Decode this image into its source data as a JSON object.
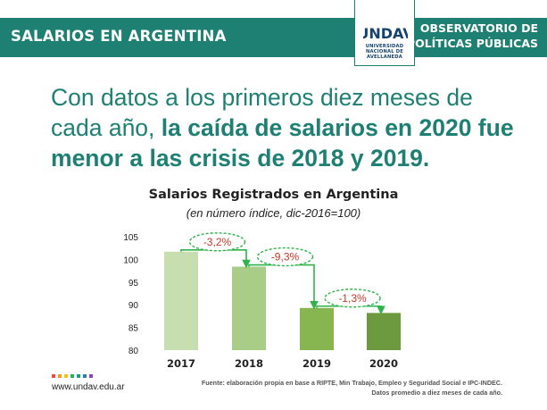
{
  "banner": {
    "title": "SALARIOS EN ARGENTINA",
    "org_line1": "OBSERVATORIO DE",
    "org_line2": "POLÍTICAS PÚBLICAS"
  },
  "logo": {
    "text": "UNDAV",
    "sub1": "UNIVERSIDAD",
    "sub2": "NACIONAL DE",
    "sub3": "AVELLANEDA",
    "color": "#16436e"
  },
  "headline": {
    "part1": "Con datos a los primeros diez meses de cada año, ",
    "part2": "la caída de salarios en 2020 fue menor a las crisis de 2018 y 2019."
  },
  "chart_data": {
    "type": "bar",
    "title": "Salarios Registrados en Argentina",
    "subtitle": "(en número índice, dic-2016=100)",
    "categories": [
      "2017",
      "2018",
      "2019",
      "2020"
    ],
    "values": [
      101.7,
      98.4,
      89.3,
      88.2
    ],
    "colors": [
      "#c7dfb0",
      "#a9cc87",
      "#87b650",
      "#6d9a3f"
    ],
    "ylim": [
      80,
      105
    ],
    "yticks": [
      80,
      85,
      90,
      95,
      100,
      105
    ],
    "annotations": [
      "-3,2%",
      "-9,3%",
      "-1,3%"
    ],
    "annotation_color": "#c0392b",
    "arrow_color": "#2fb34a",
    "grid": false
  },
  "footer": {
    "url": "www.undav.edu.ar",
    "source_line1": "Fuente: elaboración propia en base a RIPTE, Min Trabajo, Empleo y Seguridad Social e IPC-INDEC.",
    "source_line2": "Datos promedio a diez meses de cada año.",
    "dot_colors": [
      "#e74c3c",
      "#f39c12",
      "#f1c40f",
      "#27ae60",
      "#16a085",
      "#2980b9",
      "#8e44ad"
    ]
  }
}
